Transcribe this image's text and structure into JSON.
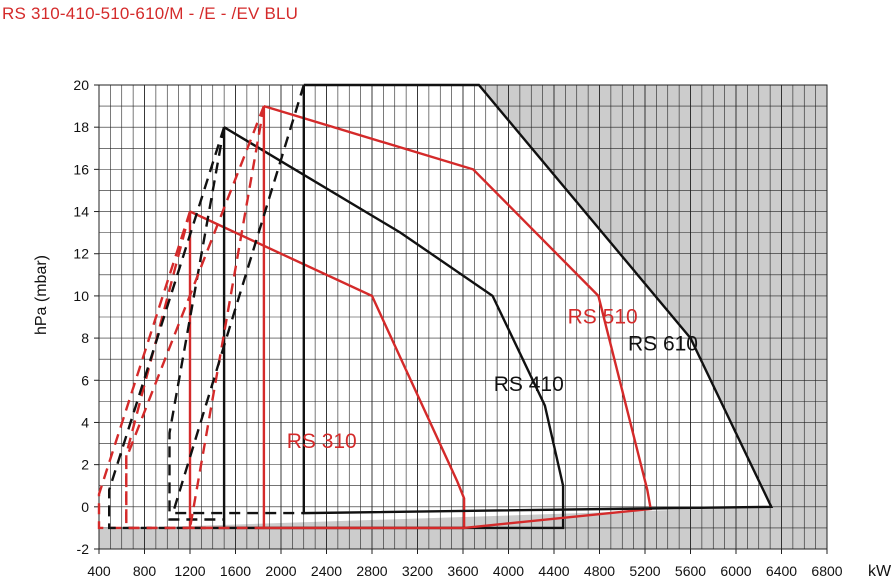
{
  "header": {
    "title": "RS 310-410-510-610/M - /E - /EV BLU"
  },
  "chart_data": {
    "type": "line",
    "title": "RS 310-410-510-610/M - /E - /EV BLU",
    "xlabel": "kW",
    "ylabel": "hPa (mbar)",
    "xlim": [
      400,
      6800
    ],
    "ylim": [
      -2,
      20
    ],
    "x_ticks": [
      "400",
      "800",
      "1200",
      "1600",
      "2000",
      "2400",
      "2800",
      "3200",
      "3600",
      "4000",
      "4400",
      "4800",
      "5200",
      "5600",
      "6000",
      "6400",
      "6800"
    ],
    "y_ticks": [
      "-2",
      "0",
      "2",
      "4",
      "6",
      "8",
      "10",
      "12",
      "14",
      "16",
      "18",
      "20"
    ],
    "grid": true,
    "colors": {
      "red": "#d42a2a",
      "black": "#111111",
      "gray_area": "#cccccc"
    },
    "series": [
      {
        "name": "RS 310",
        "color": "#d42a2a",
        "label_pos": [
          2050,
          2.8
        ],
        "solid": [
          [
            1200,
            14
          ],
          [
            1200,
            -1
          ],
          [
            3610,
            -1
          ],
          [
            3610,
            0.4
          ],
          [
            3550,
            1.2
          ],
          [
            2800,
            10
          ],
          [
            1200,
            14
          ]
        ],
        "dashed": [
          [
            1200,
            14
          ],
          [
            400,
            0.6
          ],
          [
            400,
            -1
          ],
          [
            1200,
            -1
          ]
        ],
        "dashed2": [
          [
            1200,
            14
          ],
          [
            640,
            2.5
          ],
          [
            640,
            -1
          ]
        ]
      },
      {
        "name": "RS 410",
        "color": "#111111",
        "label_pos": [
          3870,
          5.5
        ],
        "solid": [
          [
            1500,
            18
          ],
          [
            1500,
            -1
          ],
          [
            4480,
            -1
          ],
          [
            4480,
            1
          ],
          [
            4320,
            4.8
          ],
          [
            3860,
            10
          ],
          [
            3050,
            13
          ],
          [
            1500,
            18
          ]
        ],
        "dashed": [
          [
            1500,
            18
          ],
          [
            490,
            0.8
          ],
          [
            490,
            -1
          ],
          [
            1500,
            -1
          ]
        ],
        "dashed2": [
          [
            1500,
            18
          ],
          [
            1020,
            3.5
          ],
          [
            1020,
            -0.6
          ],
          [
            1500,
            -0.6
          ]
        ]
      },
      {
        "name": "RS 510",
        "color": "#d42a2a",
        "label_pos": [
          4520,
          8.7
        ],
        "solid": [
          [
            1850,
            19
          ],
          [
            1850,
            -1
          ],
          [
            3610,
            -1
          ],
          [
            5250,
            -0.1
          ],
          [
            5220,
            0.8
          ],
          [
            4790,
            10
          ],
          [
            3690,
            16
          ],
          [
            1850,
            19
          ]
        ],
        "dashed": [
          [
            1850,
            19
          ],
          [
            640,
            2.3
          ],
          [
            640,
            -1
          ],
          [
            1850,
            -1
          ]
        ],
        "dashed2": [
          [
            1850,
            19
          ],
          [
            1200,
            -1
          ]
        ]
      },
      {
        "name": "RS 610",
        "color": "#111111",
        "label_pos": [
          5050,
          7.4
        ],
        "solid": [
          [
            2200,
            20
          ],
          [
            3740,
            20
          ],
          [
            5600,
            8
          ],
          [
            6310,
            0
          ],
          [
            2200,
            -0.3
          ],
          [
            2200,
            20
          ]
        ],
        "dashed": [
          [
            2200,
            20
          ],
          [
            1050,
            -0.3
          ],
          [
            2200,
            -0.3
          ]
        ]
      }
    ],
    "gray_area": [
      [
        400,
        20
      ],
      [
        6800,
        20
      ],
      [
        6800,
        -2
      ],
      [
        400,
        -2
      ],
      [
        400,
        -1.05
      ],
      [
        6310,
        0
      ],
      [
        5600,
        8
      ],
      [
        3740,
        20
      ],
      [
        400,
        20
      ]
    ]
  }
}
